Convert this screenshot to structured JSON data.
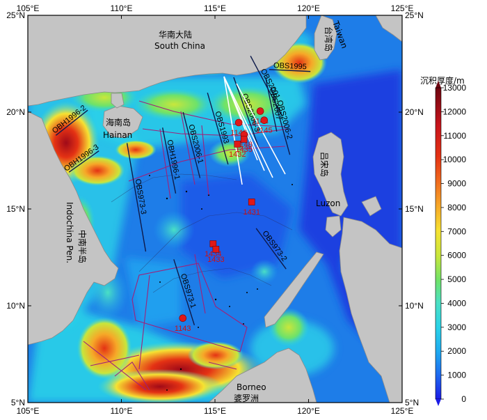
{
  "map": {
    "lon_range": [
      105,
      125
    ],
    "lat_range": [
      5,
      25
    ],
    "lon_ticks": [
      "105°E",
      "110°E",
      "115°E",
      "120°E",
      "125°E"
    ],
    "lat_ticks": [
      "5°N",
      "10°N",
      "15°N",
      "20°N",
      "25°N"
    ]
  },
  "regions": {
    "south_china_zh": "华南大陆",
    "south_china_en": "South China",
    "hainan_zh": "海南岛",
    "hainan_en": "Hainan",
    "taiwan_zh": "台湾岛",
    "taiwan_en": "Taiwan",
    "luzon_zh": "吕宋岛",
    "luzon_en": "Luzon",
    "indochina_zh": "中南半岛",
    "indochina_en": "Indochina Pen.",
    "borneo_en": "Borneo",
    "borneo_zh": "婆罗洲"
  },
  "survey_lines": [
    {
      "label": "OBS2001",
      "from": [
        116.9,
        22.9
      ],
      "to": [
        118.6,
        19.8
      ]
    },
    {
      "label": "OBS1995",
      "from": [
        117.9,
        22.2
      ],
      "to": [
        120.1,
        22.1
      ]
    },
    {
      "label": "OBS2006-3",
      "from": [
        116.0,
        21.8
      ],
      "to": [
        117.4,
        18.0
      ]
    },
    {
      "label": "OBS1993",
      "from": [
        114.6,
        21.0
      ],
      "to": [
        115.7,
        17.3
      ]
    },
    {
      "label": "OBS2006-1",
      "from": [
        113.3,
        20.0
      ],
      "to": [
        114.2,
        16.6
      ]
    },
    {
      "label": "OBS2006-2",
      "from": [
        118.0,
        21.3
      ],
      "to": [
        119.0,
        17.8
      ]
    },
    {
      "label": "OBS2007",
      "from": [
        117.7,
        21.8
      ],
      "to": [
        118.3,
        19.0
      ]
    },
    {
      "label": "OBH1996-1",
      "from": [
        112.2,
        19.2
      ],
      "to": [
        112.9,
        15.8
      ]
    },
    {
      "label": "OBH1996-2",
      "from": [
        106.5,
        18.8
      ],
      "to": [
        108.2,
        20.1
      ]
    },
    {
      "label": "OBH1996-3",
      "from": [
        107.2,
        16.9
      ],
      "to": [
        108.8,
        18.0
      ]
    },
    {
      "label": "OBS973-3",
      "from": [
        110.3,
        18.4
      ],
      "to": [
        111.3,
        12.8
      ]
    },
    {
      "label": "OBS973-2",
      "from": [
        117.2,
        14.0
      ],
      "to": [
        118.8,
        11.9
      ]
    },
    {
      "label": "OBS973-1",
      "from": [
        112.8,
        12.4
      ],
      "to": [
        113.9,
        9.0
      ]
    }
  ],
  "odp_sites": [
    {
      "label": "1146",
      "lon": 116.27,
      "lat": 19.46,
      "marker": "circle"
    },
    {
      "label": "1144",
      "lon": 117.42,
      "lat": 20.05,
      "marker": "circle"
    },
    {
      "label": "1145",
      "lon": 117.63,
      "lat": 19.58,
      "marker": "circle"
    },
    {
      "label": "1148",
      "lon": 116.56,
      "lat": 18.84,
      "marker": "circle"
    },
    {
      "label": "1432",
      "lon": 116.2,
      "lat": 18.35,
      "marker": "square"
    },
    {
      "label": "1435",
      "lon": 116.55,
      "lat": 18.6,
      "marker": "square"
    },
    {
      "label": "1431",
      "lon": 116.96,
      "lat": 15.36,
      "marker": "square"
    },
    {
      "label": "1434",
      "lon": 114.9,
      "lat": 13.2,
      "marker": "square"
    },
    {
      "label": "1433",
      "lon": 115.05,
      "lat": 12.92,
      "marker": "square"
    },
    {
      "label": "1143",
      "lon": 113.28,
      "lat": 9.36,
      "marker": "circle"
    }
  ],
  "colorbar": {
    "title": "沉积厚度/m",
    "ticks": [
      "0",
      "1000",
      "2000",
      "3000",
      "4000",
      "5000",
      "6000",
      "7000",
      "8000",
      "9000",
      "10000",
      "11000",
      "12000",
      "13000"
    ],
    "colors": [
      "#1c1ce6",
      "#1e6cf0",
      "#1ea8f0",
      "#2ad2e8",
      "#4be0c4",
      "#6ee26a",
      "#c8e63c",
      "#f6e232",
      "#f6a828",
      "#f06a1e",
      "#e43214",
      "#c8141c",
      "#a00a18",
      "#6e0610"
    ]
  }
}
